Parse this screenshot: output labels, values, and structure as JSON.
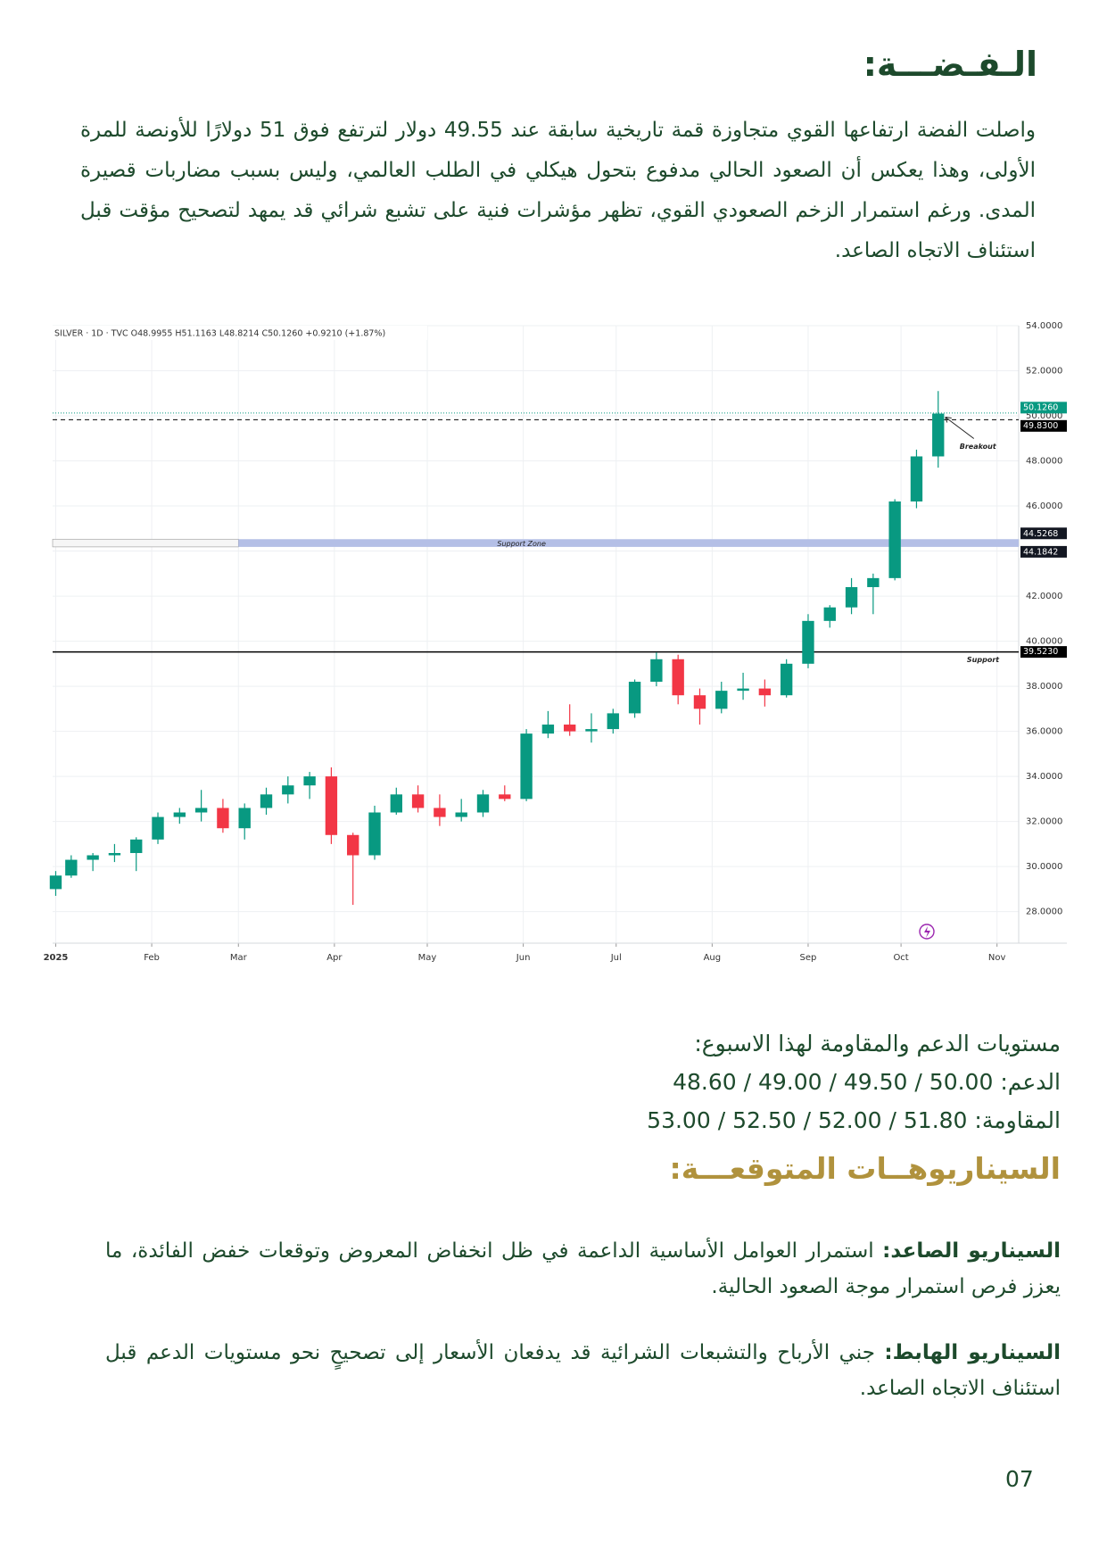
{
  "header": {
    "title": "الـفـضـــة:"
  },
  "intro": "واصلت الفضة ارتفاعها القوي متجاوزة قمة تاريخية سابقة عند 49.55 دولار لترتفع فوق 51 دولارًا للأونصة للمرة الأولى، وهذا يعكس أن الصعود الحالي مدفوع بتحول هيكلي في الطلب العالمي، وليس بسبب مضاربات قصيرة المدى. ورغم استمرار الزخم الصعودي القوي، تظهر مؤشرات فنية على تشبع شرائي قد يمهد لتصحيح مؤقت قبل استئناف الاتجاه الصاعد.",
  "chart_data": {
    "type": "candlestick",
    "legend_text": "SILVER · 1D · TVC   O48.9955  H51.1163  L48.8214  C50.1260  +0.9210 (+1.87%)",
    "x": [
      1,
      6,
      13,
      20,
      27,
      34,
      41,
      48,
      55,
      62,
      69,
      76,
      83,
      90,
      97,
      104,
      111,
      118,
      125,
      132,
      139,
      146,
      153,
      160,
      167,
      174,
      181,
      188,
      195,
      202,
      209,
      216,
      223,
      230,
      237,
      244,
      251,
      258,
      265,
      272,
      279,
      286
    ],
    "open": [
      29.0,
      29.6,
      30.3,
      30.5,
      30.6,
      31.2,
      32.2,
      32.4,
      32.6,
      31.7,
      32.6,
      33.2,
      33.6,
      34.0,
      31.4,
      30.5,
      32.4,
      33.2,
      32.6,
      32.2,
      32.4,
      33.2,
      33.0,
      35.9,
      36.3,
      36.0,
      36.1,
      36.8,
      38.2,
      39.2,
      37.6,
      37.0,
      37.8,
      37.9,
      37.6,
      39.0,
      40.9,
      41.5,
      42.4,
      42.8,
      46.2,
      48.2
    ],
    "high": [
      29.8,
      30.5,
      30.6,
      31.0,
      31.3,
      32.4,
      32.6,
      33.4,
      33.0,
      32.8,
      33.5,
      34.0,
      34.2,
      34.4,
      31.5,
      32.7,
      33.5,
      33.6,
      33.2,
      33.0,
      33.4,
      33.6,
      36.1,
      36.9,
      37.2,
      36.8,
      37.0,
      38.3,
      39.5,
      39.4,
      37.9,
      38.2,
      38.6,
      38.3,
      39.2,
      41.2,
      41.6,
      42.8,
      43.0,
      46.3,
      48.5,
      51.1
    ],
    "low": [
      28.7,
      29.5,
      29.8,
      30.2,
      29.8,
      31.0,
      31.9,
      32.0,
      31.5,
      31.2,
      32.3,
      32.8,
      33.0,
      31.0,
      28.3,
      30.3,
      32.3,
      32.4,
      31.8,
      32.0,
      32.2,
      32.9,
      32.9,
      35.7,
      35.8,
      35.5,
      35.9,
      36.6,
      38.0,
      37.2,
      36.3,
      36.8,
      37.4,
      37.1,
      37.5,
      38.8,
      40.6,
      41.2,
      41.2,
      42.7,
      45.9,
      47.7
    ],
    "close": [
      29.6,
      30.3,
      30.5,
      30.6,
      31.2,
      32.2,
      32.4,
      32.6,
      31.7,
      32.6,
      33.2,
      33.6,
      34.0,
      31.4,
      30.5,
      32.4,
      33.2,
      32.6,
      32.2,
      32.4,
      33.2,
      33.0,
      35.9,
      36.3,
      36.0,
      36.1,
      36.8,
      38.2,
      39.2,
      37.6,
      37.0,
      37.8,
      37.9,
      37.6,
      39.0,
      40.9,
      41.5,
      42.4,
      42.8,
      46.2,
      48.2,
      50.1
    ],
    "up_color": "#089981",
    "down_color": "#f23645",
    "xlim": [
      0,
      312
    ],
    "ylim": [
      26.6,
      54.0
    ],
    "xticks": [
      {
        "value": 1,
        "label": "2025"
      },
      {
        "value": 32,
        "label": "Feb"
      },
      {
        "value": 60,
        "label": "Mar"
      },
      {
        "value": 91,
        "label": "Apr"
      },
      {
        "value": 121,
        "label": "May"
      },
      {
        "value": 152,
        "label": "Jun"
      },
      {
        "value": 182,
        "label": "Jul"
      },
      {
        "value": 213,
        "label": "Aug"
      },
      {
        "value": 244,
        "label": "Sep"
      },
      {
        "value": 274,
        "label": "Oct"
      },
      {
        "value": 305,
        "label": "Nov"
      }
    ],
    "yticks": [
      {
        "value": 28,
        "label": "28.0000"
      },
      {
        "value": 30,
        "label": "30.0000"
      },
      {
        "value": 32,
        "label": "32.0000"
      },
      {
        "value": 34,
        "label": "34.0000"
      },
      {
        "value": 36,
        "label": "36.0000"
      },
      {
        "value": 38,
        "label": "38.0000"
      },
      {
        "value": 40,
        "label": "40.0000"
      },
      {
        "value": 42,
        "label": "42.0000"
      },
      {
        "value": 44,
        "label": "44.0000"
      },
      {
        "value": 46,
        "label": "46.0000"
      },
      {
        "value": 48,
        "label": "48.0000"
      },
      {
        "value": 50,
        "label": "50.0000"
      },
      {
        "value": 52,
        "label": "52.0000"
      },
      {
        "value": 54,
        "label": "54.0000"
      }
    ],
    "grid": true,
    "levels": [
      {
        "value": 50.126,
        "label": "50.1260",
        "color": "#089981",
        "style": "dotted"
      },
      {
        "value": 49.83,
        "label": "49.8300",
        "color": "#000000",
        "style": "dashed"
      },
      {
        "value": 39.523,
        "label": "39.5230",
        "color": "#000000",
        "style": "solid",
        "text": "Support"
      }
    ],
    "support_zone": {
      "low": {
        "value": 44.1842,
        "label": "44.1842"
      },
      "high": {
        "value": 44.5268,
        "label": "44.5268"
      },
      "start": 60,
      "label": "Support Zone",
      "color": "#b4bfe6"
    },
    "breakout_label": "Breakout"
  },
  "levels_block": {
    "title": "مستويات الدعم والمقاومة لهذا الاسبوع:",
    "support": "الدعم: 50.00 / 49.50 / 49.00 / 48.60",
    "resistance": "المقاومة: 51.80 / 52.00 / 52.50 / 53.00"
  },
  "scenarios": {
    "title": "السيناريوهــات المتوقعـــة:",
    "items": [
      {
        "label": "السيناريو الصاعد:",
        "text": "استمرار العوامل الأساسية الداعمة في ظل انخفاض المعروض وتوقعات خفض الفائدة، ما يعزز فرص استمرار موجة الصعود الحالية."
      },
      {
        "label": "السيناريو الهابط:",
        "text": "جني الأرباح والتشبعات الشرائية قد يدفعان الأسعار إلى تصحيحٍ نحو مستويات الدعم قبل استئناف الاتجاه الصاعد."
      }
    ]
  },
  "page_number": "07"
}
